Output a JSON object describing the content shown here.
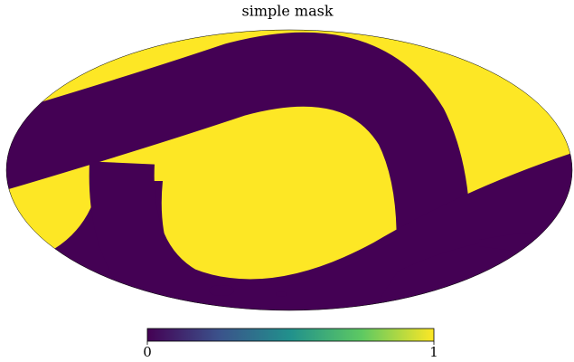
{
  "chart_data": {
    "type": "mollweide",
    "title": "simple mask",
    "cmap": [
      "#440154",
      "#3b528b",
      "#21918c",
      "#5ec962",
      "#fde725"
    ],
    "clim": [
      0,
      1
    ],
    "cticks": [
      0,
      1
    ]
  }
}
